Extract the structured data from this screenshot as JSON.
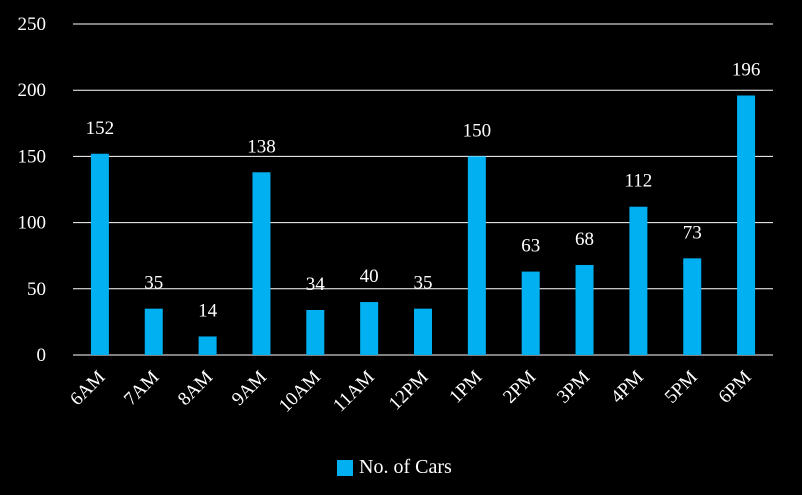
{
  "chart_data": {
    "type": "bar",
    "categories": [
      "6AM",
      "7AM",
      "8AM",
      "9AM",
      "10AM",
      "11AM",
      "12PM",
      "1PM",
      "2PM",
      "3PM",
      "4PM",
      "5PM",
      "6PM"
    ],
    "series": [
      {
        "name": "No. of Cars",
        "values": [
          152,
          35,
          14,
          138,
          34,
          40,
          35,
          150,
          63,
          68,
          112,
          73,
          196
        ]
      }
    ],
    "y_ticks": [
      0,
      50,
      100,
      150,
      200,
      250
    ],
    "ylim": [
      0,
      250
    ],
    "grid": true,
    "legend_position": "bottom",
    "colors": {
      "bar": "#00b0f0",
      "background": "#000000",
      "text": "#ffffff",
      "grid": "#ffffff"
    }
  }
}
